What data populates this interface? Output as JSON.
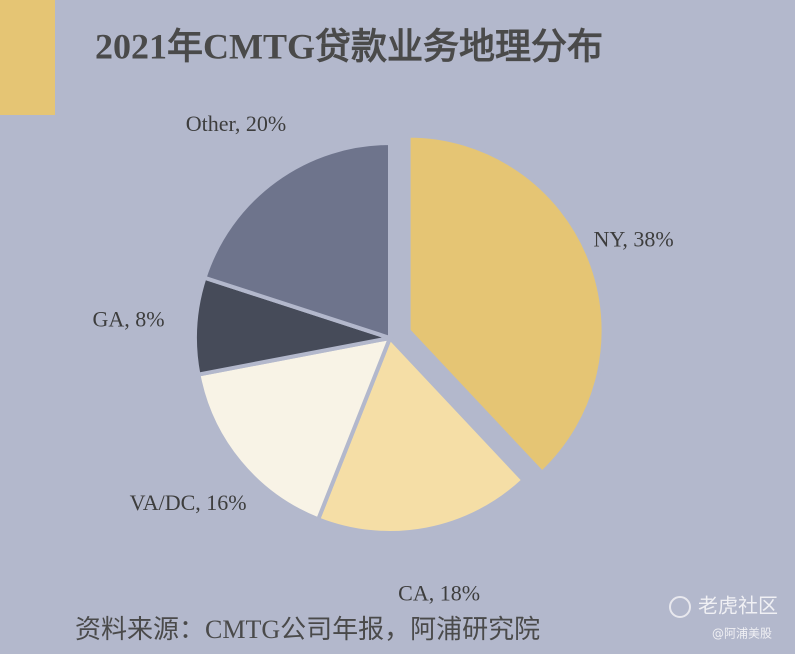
{
  "chart_data": {
    "type": "pie",
    "title": "2021年CMTG贷款业务地理分布",
    "values": [
      38,
      18,
      16,
      8,
      20
    ],
    "value_labels": [
      "NY, 38%",
      "CA, 18%",
      "VA/DC, 16%",
      "GA, 8%",
      "Other, 20%"
    ],
    "colors": [
      "#e5c574",
      "#f5dea6",
      "#f8f3e6",
      "#464b59",
      "#6e748c"
    ],
    "exploded": [
      true,
      false,
      false,
      false,
      false
    ]
  },
  "source": "资料来源：CMTG公司年报，阿浦研究院",
  "watermark": {
    "brand": "老虎社区",
    "author": "@阿浦美股"
  }
}
